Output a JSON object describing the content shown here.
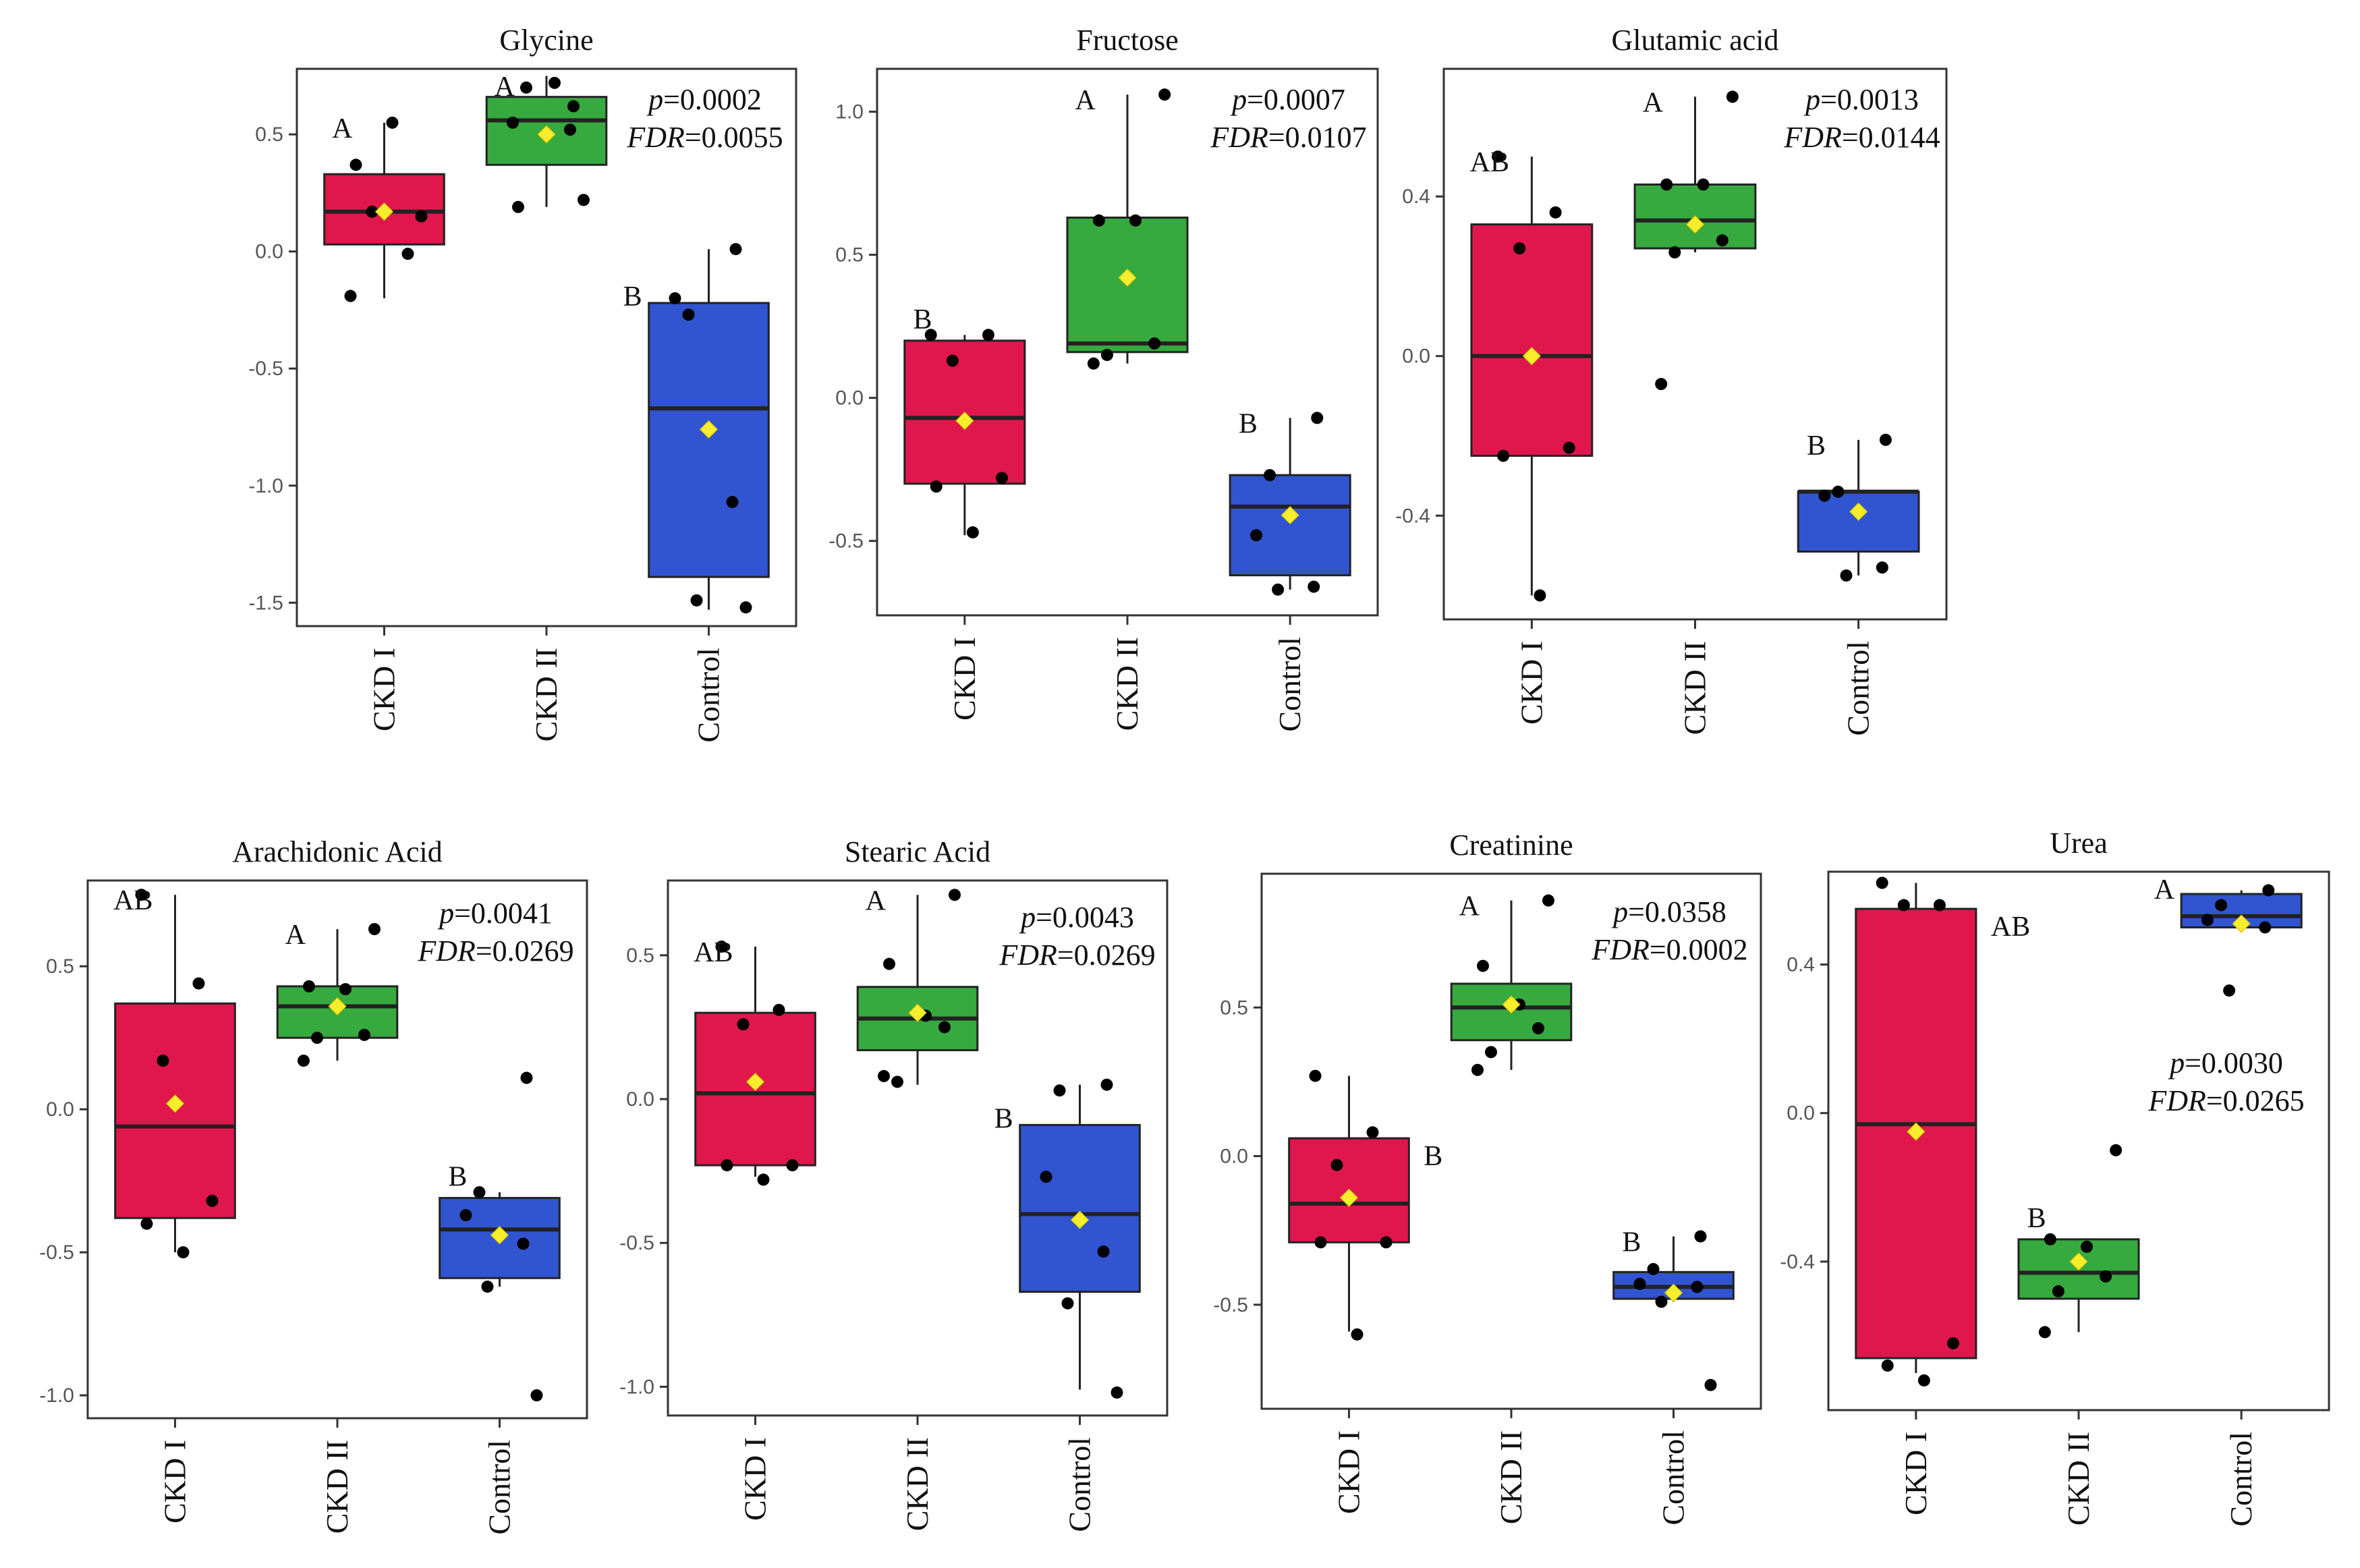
{
  "chart_data": [
    {
      "type": "box",
      "title": "Glycine",
      "categories": [
        "CKD I",
        "CKD II",
        "Control"
      ],
      "ylim": [
        -1.6,
        0.78
      ],
      "yticks": [
        -1.5,
        -1.0,
        -0.5,
        0.0,
        0.5
      ],
      "ytick_labels": [
        "-1.5",
        "-1.0",
        "-0.5",
        "0.0",
        "0.5"
      ],
      "stats": {
        "p_label": "p",
        "p_value": "=0.0002",
        "fdr_label": "FDR",
        "fdr_value": "=0.0055"
      },
      "groups": [
        {
          "name": "CKD I",
          "color": "#e0174d",
          "letter": "A",
          "q1": 0.03,
          "median": 0.17,
          "q3": 0.33,
          "whisker_low": -0.2,
          "whisker_high": 0.55,
          "mean": 0.17,
          "points": [
            -0.19,
            -0.01,
            0.17,
            0.15,
            0.37,
            0.55
          ]
        },
        {
          "name": "CKD II",
          "color": "#36a93f",
          "letter": "A",
          "q1": 0.37,
          "median": 0.56,
          "q3": 0.66,
          "whisker_low": 0.19,
          "whisker_high": 0.75,
          "mean": 0.5,
          "points": [
            0.22,
            0.19,
            0.72,
            0.62,
            0.7,
            0.55,
            0.52
          ]
        },
        {
          "name": "Control",
          "color": "#3155d0",
          "letter": "B",
          "q1": -1.39,
          "median": -0.67,
          "q3": -0.22,
          "whisker_low": -1.53,
          "whisker_high": 0.01,
          "mean": -0.76,
          "points": [
            0.01,
            -0.27,
            -0.2,
            -1.07,
            -1.49,
            -1.52
          ]
        }
      ]
    },
    {
      "type": "box",
      "title": "Fructose",
      "categories": [
        "CKD I",
        "CKD II",
        "Control"
      ],
      "ylim": [
        -0.76,
        1.15
      ],
      "yticks": [
        -0.5,
        0.0,
        0.5,
        1.0
      ],
      "ytick_labels": [
        "-0.5",
        "0.0",
        "0.5",
        "1.0"
      ],
      "stats": {
        "p_label": "p",
        "p_value": "=0.0007",
        "fdr_label": "FDR",
        "fdr_value": "=0.0107"
      },
      "groups": [
        {
          "name": "CKD I",
          "color": "#e0174d",
          "letter": "B",
          "q1": -0.3,
          "median": -0.07,
          "q3": 0.2,
          "whisker_low": -0.48,
          "whisker_high": 0.22,
          "mean": -0.08,
          "points": [
            0.22,
            0.22,
            0.13,
            -0.28,
            -0.31,
            -0.47
          ]
        },
        {
          "name": "CKD II",
          "color": "#36a93f",
          "letter": "A",
          "q1": 0.16,
          "median": 0.19,
          "q3": 0.63,
          "whisker_low": 0.12,
          "whisker_high": 1.06,
          "mean": 0.42,
          "points": [
            1.06,
            0.62,
            0.62,
            0.19,
            0.15,
            0.12
          ]
        },
        {
          "name": "Control",
          "color": "#3155d0",
          "letter": "B",
          "q1": -0.62,
          "median": -0.38,
          "q3": -0.27,
          "whisker_low": -0.67,
          "whisker_high": -0.07,
          "mean": -0.41,
          "points": [
            -0.07,
            -0.27,
            -0.48,
            -0.66,
            -0.67
          ]
        }
      ]
    },
    {
      "type": "box",
      "title": "Glutamic acid",
      "categories": [
        "CKD I",
        "CKD II",
        "Control"
      ],
      "ylim": [
        -0.66,
        0.72
      ],
      "yticks": [
        -0.4,
        0.0,
        0.4
      ],
      "ytick_labels": [
        "-0.4",
        "0.0",
        "0.4"
      ],
      "stats": {
        "p_label": "p",
        "p_value": "=0.0013",
        "fdr_label": "FDR",
        "fdr_value": "=0.0144"
      },
      "groups": [
        {
          "name": "CKD I",
          "color": "#e0174d",
          "letter": "AB",
          "q1": -0.25,
          "median": 0.0,
          "q3": 0.33,
          "whisker_low": -0.6,
          "whisker_high": 0.5,
          "mean": 0.0,
          "points": [
            0.5,
            0.36,
            0.27,
            -0.23,
            -0.25,
            -0.6
          ]
        },
        {
          "name": "CKD II",
          "color": "#36a93f",
          "letter": "A",
          "q1": 0.27,
          "median": 0.34,
          "q3": 0.43,
          "whisker_low": 0.26,
          "whisker_high": 0.65,
          "mean": 0.33,
          "points": [
            0.65,
            0.43,
            0.43,
            0.29,
            0.26,
            -0.07
          ]
        },
        {
          "name": "Control",
          "color": "#3155d0",
          "letter": "B",
          "q1": -0.49,
          "median": -0.34,
          "q3": -0.34,
          "whisker_low": -0.55,
          "whisker_high": -0.21,
          "mean": -0.39,
          "points": [
            -0.21,
            -0.34,
            -0.35,
            -0.53,
            -0.55
          ]
        }
      ]
    },
    {
      "type": "box",
      "title": "Arachidonic Acid",
      "categories": [
        "CKD I",
        "CKD II",
        "Control"
      ],
      "ylim": [
        -1.08,
        0.8
      ],
      "yticks": [
        -1.0,
        -0.5,
        0.0,
        0.5
      ],
      "ytick_labels": [
        "-1.0",
        "-0.5",
        "0.0",
        "0.5"
      ],
      "stats": {
        "p_label": "p",
        "p_value": "=0.0041",
        "fdr_label": "FDR",
        "fdr_value": "=0.0269"
      },
      "groups": [
        {
          "name": "CKD I",
          "color": "#e0174d",
          "letter": "AB",
          "q1": -0.38,
          "median": -0.06,
          "q3": 0.37,
          "whisker_low": -0.5,
          "whisker_high": 0.75,
          "mean": 0.02,
          "points": [
            0.75,
            0.44,
            0.17,
            -0.32,
            -0.4,
            -0.5
          ]
        },
        {
          "name": "CKD II",
          "color": "#36a93f",
          "letter": "A",
          "q1": 0.25,
          "median": 0.36,
          "q3": 0.43,
          "whisker_low": 0.17,
          "whisker_high": 0.63,
          "mean": 0.36,
          "points": [
            0.63,
            0.43,
            0.42,
            0.26,
            0.25,
            0.17
          ]
        },
        {
          "name": "Control",
          "color": "#3155d0",
          "letter": "B",
          "q1": -0.59,
          "median": -0.42,
          "q3": -0.31,
          "whisker_low": -0.62,
          "whisker_high": -0.29,
          "mean": -0.44,
          "points": [
            0.11,
            -0.29,
            -0.37,
            -0.47,
            -0.62,
            -1.0
          ]
        }
      ]
    },
    {
      "type": "box",
      "title": "Stearic Acid",
      "categories": [
        "CKD I",
        "CKD II",
        "Control"
      ],
      "ylim": [
        -1.1,
        0.76
      ],
      "yticks": [
        -1.0,
        -0.5,
        0.0,
        0.5
      ],
      "ytick_labels": [
        "-1.0",
        "-0.5",
        "0.0",
        "0.5"
      ],
      "stats": {
        "p_label": "p",
        "p_value": "=0.0043",
        "fdr_label": "FDR",
        "fdr_value": "=0.0269"
      },
      "groups": [
        {
          "name": "CKD I",
          "color": "#e0174d",
          "letter": "AB",
          "q1": -0.23,
          "median": 0.02,
          "q3": 0.3,
          "whisker_low": -0.27,
          "whisker_high": 0.53,
          "mean": 0.06,
          "points": [
            0.53,
            0.31,
            0.26,
            -0.23,
            -0.23,
            -0.28
          ]
        },
        {
          "name": "CKD II",
          "color": "#36a93f",
          "letter": "A",
          "q1": 0.17,
          "median": 0.28,
          "q3": 0.39,
          "whisker_low": 0.05,
          "whisker_high": 0.71,
          "mean": 0.3,
          "points": [
            0.71,
            0.47,
            0.29,
            0.25,
            0.06,
            0.08
          ]
        },
        {
          "name": "Control",
          "color": "#3155d0",
          "letter": "B",
          "q1": -0.67,
          "median": -0.4,
          "q3": -0.09,
          "whisker_low": -1.01,
          "whisker_high": 0.05,
          "mean": -0.42,
          "points": [
            0.05,
            0.03,
            -0.27,
            -0.53,
            -0.71,
            -1.02
          ]
        }
      ]
    },
    {
      "type": "box",
      "title": "Creatinine",
      "categories": [
        "CKD I",
        "CKD II",
        "Control"
      ],
      "ylim": [
        -0.85,
        0.95
      ],
      "yticks": [
        -0.5,
        0.0,
        0.5
      ],
      "ytick_labels": [
        "-0.5",
        "0.0",
        "0.5"
      ],
      "stats": {
        "p_label": "p",
        "p_value": "=0.0358",
        "fdr_label": "FDR",
        "fdr_value": "=0.0002"
      },
      "groups": [
        {
          "name": "CKD I",
          "color": "#e0174d",
          "letter": "B",
          "q1": -0.29,
          "median": -0.16,
          "q3": 0.06,
          "whisker_low": -0.59,
          "whisker_high": 0.27,
          "mean": -0.14,
          "points": [
            0.27,
            0.08,
            -0.03,
            -0.29,
            -0.29,
            -0.6
          ]
        },
        {
          "name": "CKD II",
          "color": "#36a93f",
          "letter": "A",
          "q1": 0.39,
          "median": 0.5,
          "q3": 0.58,
          "whisker_low": 0.29,
          "whisker_high": 0.86,
          "mean": 0.51,
          "points": [
            0.86,
            0.64,
            0.51,
            0.43,
            0.35,
            0.29
          ]
        },
        {
          "name": "Control",
          "color": "#3155d0",
          "letter": "B",
          "q1": -0.48,
          "median": -0.44,
          "q3": -0.39,
          "whisker_low": -0.49,
          "whisker_high": -0.27,
          "mean": -0.46,
          "points": [
            -0.27,
            -0.38,
            -0.43,
            -0.44,
            -0.49,
            -0.77
          ]
        }
      ]
    },
    {
      "type": "box",
      "title": "Urea",
      "categories": [
        "CKD I",
        "CKD II",
        "Control"
      ],
      "ylim": [
        -0.8,
        0.65
      ],
      "yticks": [
        -0.4,
        0.0,
        0.4
      ],
      "ytick_labels": [
        "-0.4",
        "0.0",
        "0.4"
      ],
      "stats": {
        "p_label": "p",
        "p_value": "=0.0030",
        "fdr_label": "FDR",
        "fdr_value": "=0.0265"
      },
      "groups": [
        {
          "name": "CKD I",
          "color": "#e0174d",
          "letter": "AB",
          "q1": -0.66,
          "median": -0.03,
          "q3": 0.55,
          "whisker_low": -0.7,
          "whisker_high": 0.62,
          "mean": -0.05,
          "points": [
            0.62,
            0.56,
            0.56,
            -0.62,
            -0.68,
            -0.72
          ]
        },
        {
          "name": "CKD II",
          "color": "#36a93f",
          "letter": "B",
          "q1": -0.5,
          "median": -0.43,
          "q3": -0.34,
          "whisker_low": -0.59,
          "whisker_high": -0.34,
          "mean": -0.4,
          "points": [
            -0.1,
            -0.34,
            -0.36,
            -0.44,
            -0.48,
            -0.59
          ]
        },
        {
          "name": "Control",
          "color": "#3155d0",
          "letter": "A",
          "q1": 0.5,
          "median": 0.53,
          "q3": 0.59,
          "whisker_low": 0.5,
          "whisker_high": 0.6,
          "mean": 0.51,
          "points": [
            0.6,
            0.56,
            0.52,
            0.5,
            0.33
          ]
        }
      ]
    }
  ]
}
